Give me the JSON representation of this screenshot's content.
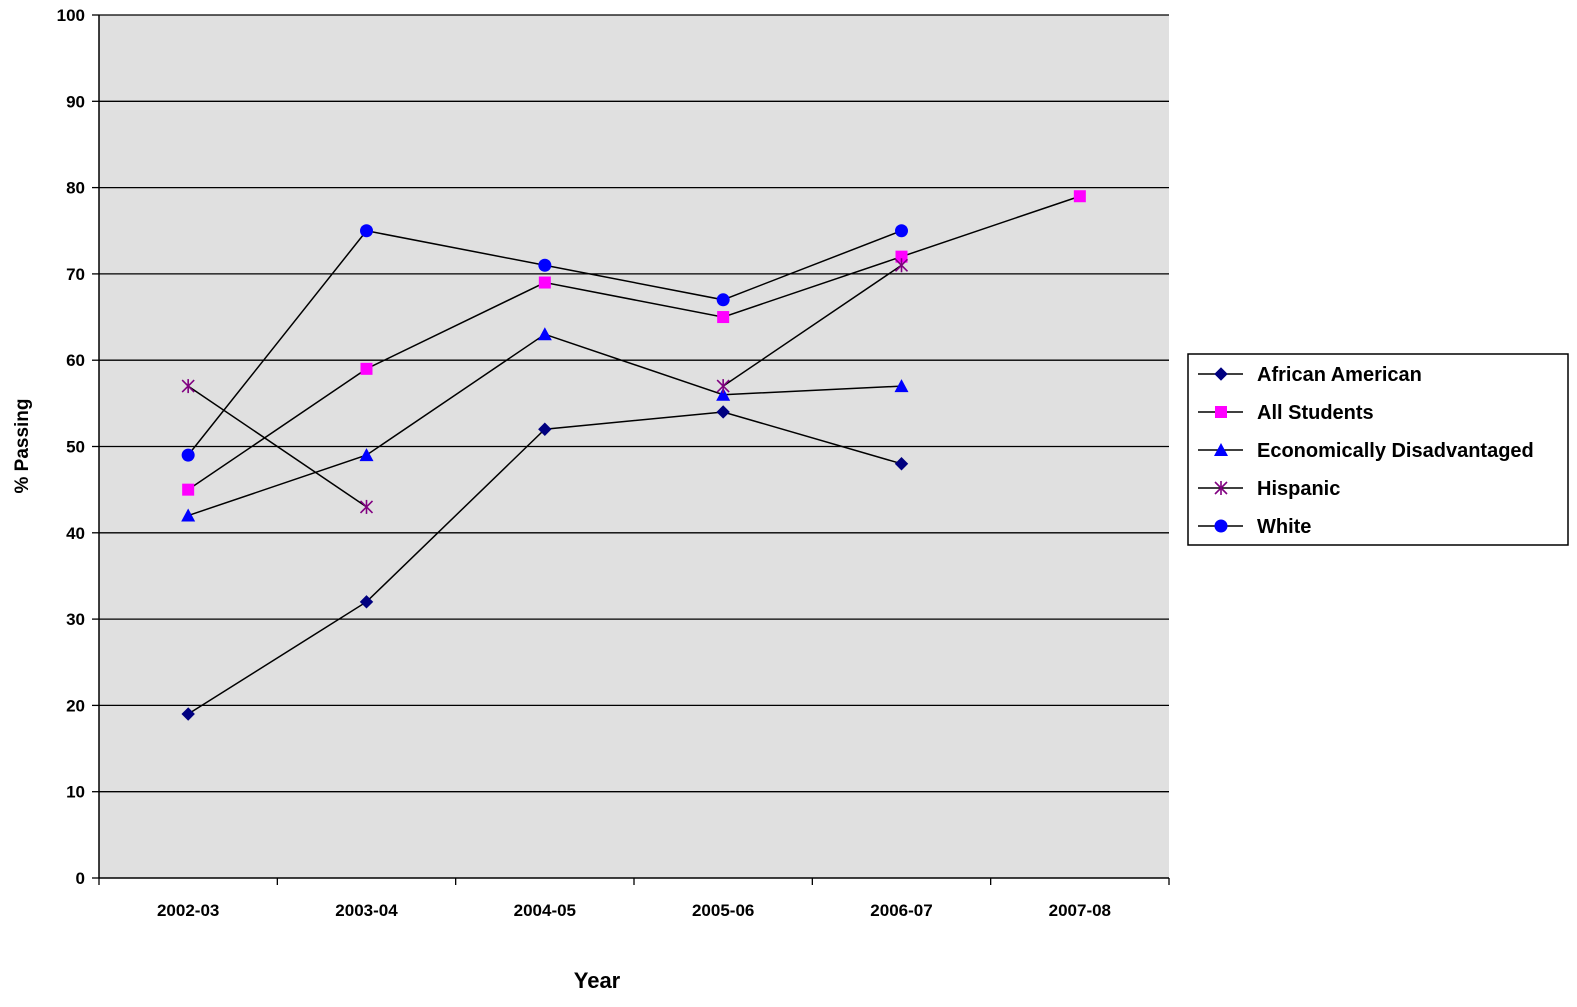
{
  "chart_data": {
    "type": "line",
    "title": "",
    "xlabel": "Year",
    "ylabel": "% Passing",
    "ylim": [
      0,
      100
    ],
    "yticks": [
      0,
      10,
      20,
      30,
      40,
      50,
      60,
      70,
      80,
      90,
      100
    ],
    "categories": [
      "2002-03",
      "2003-04",
      "2004-05",
      "2005-06",
      "2006-07",
      "2007-08"
    ],
    "grid": "horizontal",
    "legend_position": "right",
    "plot_background": "#e0e0e0",
    "series": [
      {
        "name": "African American",
        "marker": "diamond",
        "color": "#000080",
        "values": [
          19,
          32,
          52,
          54,
          48,
          null
        ]
      },
      {
        "name": "All Students",
        "marker": "square",
        "color": "#ff00ff",
        "values": [
          45,
          59,
          69,
          65,
          72,
          79
        ]
      },
      {
        "name": "Economically Disadvantaged",
        "marker": "triangle",
        "color": "#0000ff",
        "values": [
          42,
          49,
          63,
          56,
          57,
          null
        ]
      },
      {
        "name": "Hispanic",
        "marker": "star",
        "color": "#800080",
        "values": [
          57,
          43,
          null,
          57,
          71,
          null
        ]
      },
      {
        "name": "White",
        "marker": "circle",
        "color": "#0000ff",
        "values": [
          49,
          75,
          71,
          67,
          75,
          null
        ]
      }
    ]
  }
}
